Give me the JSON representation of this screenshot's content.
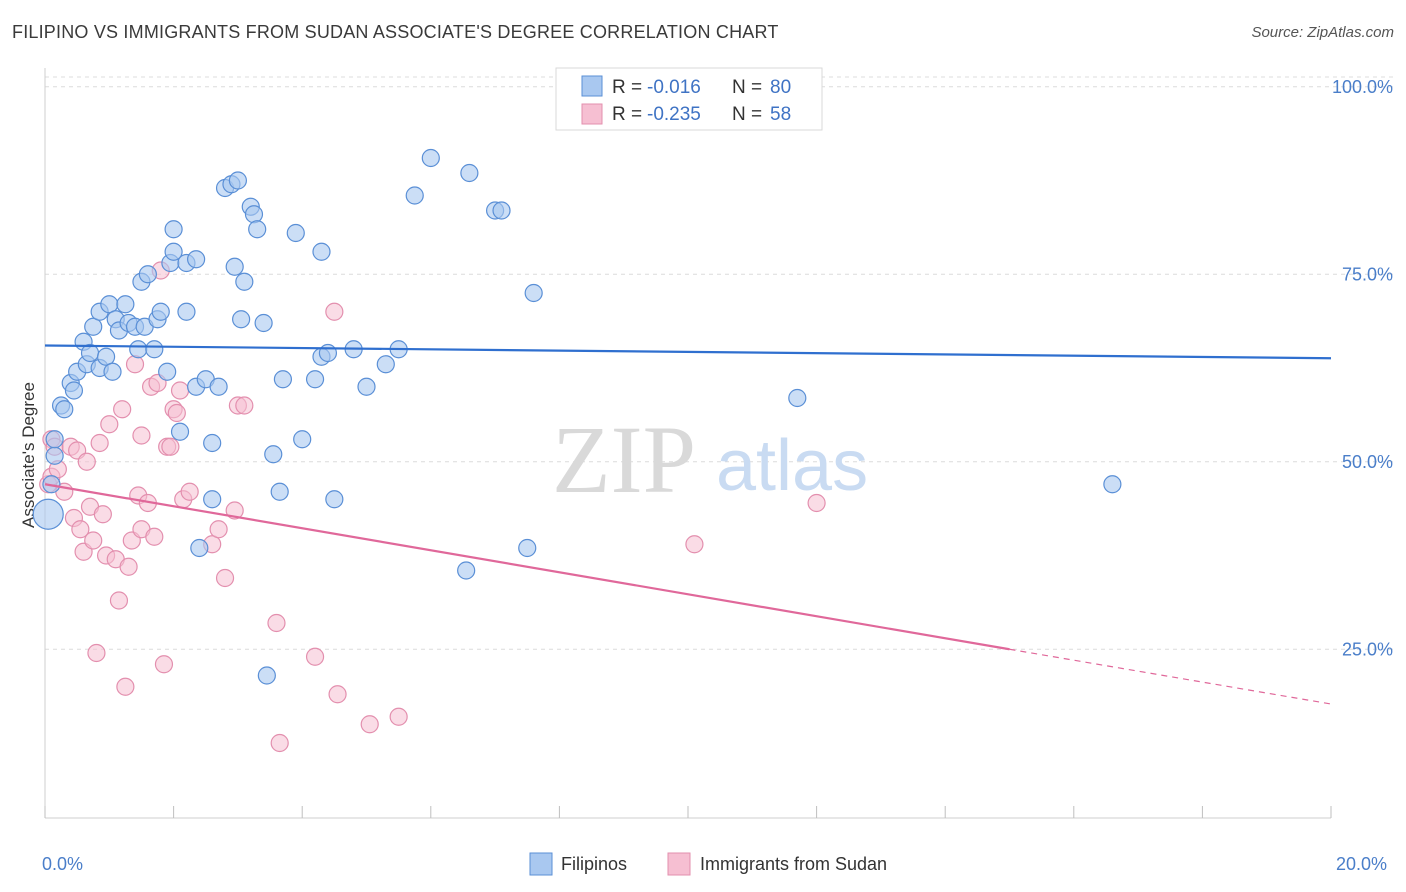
{
  "title": "FILIPINO VS IMMIGRANTS FROM SUDAN ASSOCIATE'S DEGREE CORRELATION CHART",
  "source": "Source: ZipAtlas.com",
  "colors": {
    "blue_fill": "#a9c8f0",
    "blue_stroke": "#5a8fd6",
    "blue_line": "#2f6fcf",
    "pink_fill": "#f6bfd2",
    "pink_stroke": "#e38fae",
    "pink_line": "#e0689a",
    "tick_text": "#4a7ec9",
    "grid": "#dcdcdc"
  },
  "legend": {
    "rows": [
      {
        "r_label": "R =",
        "r_value": "-0.016",
        "n_label": "N =",
        "n_value": "80"
      },
      {
        "r_label": "R =",
        "r_value": "-0.235",
        "n_label": "N =",
        "n_value": "58"
      }
    ]
  },
  "bottom_legend": [
    "Filipinos",
    "Immigrants from Sudan"
  ],
  "watermark": {
    "zip": "ZIP",
    "atlas": "atlas"
  },
  "chart_data": {
    "type": "scatter",
    "title": "FILIPINO VS IMMIGRANTS FROM SUDAN ASSOCIATE'S DEGREE CORRELATION CHART",
    "xlabel": "",
    "ylabel": "Associate's Degree",
    "xlim": [
      0,
      20
    ],
    "ylim": [
      2.5,
      102.5
    ],
    "x_tick_labels": [
      "0.0%",
      "20.0%"
    ],
    "y_ticks": [
      25,
      50,
      75,
      100
    ],
    "y_tick_labels": [
      "25.0%",
      "50.0%",
      "75.0%",
      "100.0%"
    ],
    "grid": true,
    "legend_position": "top-center",
    "series": [
      {
        "name": "Filipinos",
        "color": "#a9c8f0",
        "trend": {
          "x": [
            0,
            20
          ],
          "y": [
            65.5,
            63.8
          ]
        },
        "points": [
          {
            "x": 0.05,
            "y": 43.0
          },
          {
            "x": 0.1,
            "y": 47.0
          },
          {
            "x": 0.15,
            "y": 50.8
          },
          {
            "x": 0.15,
            "y": 53.0
          },
          {
            "x": 0.25,
            "y": 57.5
          },
          {
            "x": 0.3,
            "y": 57.0
          },
          {
            "x": 0.4,
            "y": 60.5
          },
          {
            "x": 0.45,
            "y": 59.5
          },
          {
            "x": 0.5,
            "y": 62.0
          },
          {
            "x": 0.6,
            "y": 66.0
          },
          {
            "x": 0.65,
            "y": 63.0
          },
          {
            "x": 0.7,
            "y": 64.5
          },
          {
            "x": 0.75,
            "y": 68.0
          },
          {
            "x": 0.85,
            "y": 62.5
          },
          {
            "x": 0.85,
            "y": 70.0
          },
          {
            "x": 0.95,
            "y": 64.0
          },
          {
            "x": 1.0,
            "y": 71.0
          },
          {
            "x": 1.05,
            "y": 62.0
          },
          {
            "x": 1.1,
            "y": 69.0
          },
          {
            "x": 1.15,
            "y": 67.5
          },
          {
            "x": 1.25,
            "y": 71.0
          },
          {
            "x": 1.3,
            "y": 68.5
          },
          {
            "x": 1.4,
            "y": 68.0
          },
          {
            "x": 1.45,
            "y": 65.0
          },
          {
            "x": 1.5,
            "y": 74.0
          },
          {
            "x": 1.55,
            "y": 68.0
          },
          {
            "x": 1.6,
            "y": 75.0
          },
          {
            "x": 1.7,
            "y": 65.0
          },
          {
            "x": 1.75,
            "y": 69.0
          },
          {
            "x": 1.8,
            "y": 70.0
          },
          {
            "x": 1.9,
            "y": 62.0
          },
          {
            "x": 1.95,
            "y": 76.5
          },
          {
            "x": 2.0,
            "y": 78.0
          },
          {
            "x": 2.0,
            "y": 81.0
          },
          {
            "x": 2.1,
            "y": 54.0
          },
          {
            "x": 2.2,
            "y": 70.0
          },
          {
            "x": 2.2,
            "y": 76.5
          },
          {
            "x": 2.35,
            "y": 77.0
          },
          {
            "x": 2.35,
            "y": 60.0
          },
          {
            "x": 2.4,
            "y": 38.5
          },
          {
            "x": 2.5,
            "y": 61.0
          },
          {
            "x": 2.6,
            "y": 52.5
          },
          {
            "x": 2.6,
            "y": 45.0
          },
          {
            "x": 2.7,
            "y": 60.0
          },
          {
            "x": 2.8,
            "y": 86.5
          },
          {
            "x": 2.9,
            "y": 87.0
          },
          {
            "x": 2.95,
            "y": 76.0
          },
          {
            "x": 3.0,
            "y": 87.5
          },
          {
            "x": 3.05,
            "y": 69.0
          },
          {
            "x": 3.1,
            "y": 74.0
          },
          {
            "x": 3.2,
            "y": 84.0
          },
          {
            "x": 3.25,
            "y": 83.0
          },
          {
            "x": 3.3,
            "y": 81.0
          },
          {
            "x": 3.4,
            "y": 68.5
          },
          {
            "x": 3.45,
            "y": 21.5
          },
          {
            "x": 3.55,
            "y": 51.0
          },
          {
            "x": 3.65,
            "y": 46.0
          },
          {
            "x": 3.7,
            "y": 61.0
          },
          {
            "x": 3.9,
            "y": 80.5
          },
          {
            "x": 4.0,
            "y": 53.0
          },
          {
            "x": 4.2,
            "y": 61.0
          },
          {
            "x": 4.3,
            "y": 78.0
          },
          {
            "x": 4.3,
            "y": 64.0
          },
          {
            "x": 4.4,
            "y": 64.5
          },
          {
            "x": 4.5,
            "y": 45.0
          },
          {
            "x": 4.8,
            "y": 65.0
          },
          {
            "x": 5.0,
            "y": 60.0
          },
          {
            "x": 5.3,
            "y": 63.0
          },
          {
            "x": 5.5,
            "y": 65.0
          },
          {
            "x": 5.75,
            "y": 85.5
          },
          {
            "x": 6.0,
            "y": 90.5
          },
          {
            "x": 6.55,
            "y": 35.5
          },
          {
            "x": 6.6,
            "y": 88.5
          },
          {
            "x": 7.0,
            "y": 83.5
          },
          {
            "x": 7.1,
            "y": 83.5
          },
          {
            "x": 7.5,
            "y": 38.5
          },
          {
            "x": 7.6,
            "y": 72.5
          },
          {
            "x": 11.7,
            "y": 58.5
          },
          {
            "x": 16.6,
            "y": 47.0
          }
        ]
      },
      {
        "name": "Immigrants from Sudan",
        "color": "#f6bfd2",
        "trend": {
          "x": [
            0,
            15.0
          ],
          "y": [
            47.0,
            25.0
          ],
          "dashed_extension": {
            "x": [
              15.0,
              20
            ],
            "y": [
              25.0,
              17.7
            ]
          }
        },
        "points": [
          {
            "x": 0.05,
            "y": 47.0
          },
          {
            "x": 0.1,
            "y": 48.0
          },
          {
            "x": 0.1,
            "y": 53.0
          },
          {
            "x": 0.15,
            "y": 52.0
          },
          {
            "x": 0.2,
            "y": 49.0
          },
          {
            "x": 0.3,
            "y": 46.0
          },
          {
            "x": 0.4,
            "y": 52.0
          },
          {
            "x": 0.45,
            "y": 42.5
          },
          {
            "x": 0.5,
            "y": 51.5
          },
          {
            "x": 0.55,
            "y": 41.0
          },
          {
            "x": 0.6,
            "y": 38.0
          },
          {
            "x": 0.65,
            "y": 50.0
          },
          {
            "x": 0.7,
            "y": 44.0
          },
          {
            "x": 0.75,
            "y": 39.5
          },
          {
            "x": 0.8,
            "y": 24.5
          },
          {
            "x": 0.85,
            "y": 52.5
          },
          {
            "x": 0.9,
            "y": 43.0
          },
          {
            "x": 0.95,
            "y": 37.5
          },
          {
            "x": 1.0,
            "y": 55.0
          },
          {
            "x": 1.1,
            "y": 37.0
          },
          {
            "x": 1.15,
            "y": 31.5
          },
          {
            "x": 1.2,
            "y": 57.0
          },
          {
            "x": 1.25,
            "y": 20.0
          },
          {
            "x": 1.3,
            "y": 36.0
          },
          {
            "x": 1.35,
            "y": 39.5
          },
          {
            "x": 1.4,
            "y": 63.0
          },
          {
            "x": 1.45,
            "y": 45.5
          },
          {
            "x": 1.5,
            "y": 41.0
          },
          {
            "x": 1.5,
            "y": 53.5
          },
          {
            "x": 1.6,
            "y": 44.5
          },
          {
            "x": 1.65,
            "y": 60.0
          },
          {
            "x": 1.7,
            "y": 40.0
          },
          {
            "x": 1.75,
            "y": 60.5
          },
          {
            "x": 1.8,
            "y": 75.5
          },
          {
            "x": 1.85,
            "y": 23.0
          },
          {
            "x": 1.9,
            "y": 52.0
          },
          {
            "x": 1.95,
            "y": 52.0
          },
          {
            "x": 2.0,
            "y": 57.0
          },
          {
            "x": 2.05,
            "y": 56.5
          },
          {
            "x": 2.1,
            "y": 59.5
          },
          {
            "x": 2.15,
            "y": 45.0
          },
          {
            "x": 2.25,
            "y": 46.0
          },
          {
            "x": 2.6,
            "y": 39.0
          },
          {
            "x": 2.7,
            "y": 41.0
          },
          {
            "x": 2.8,
            "y": 34.5
          },
          {
            "x": 2.95,
            "y": 43.5
          },
          {
            "x": 3.0,
            "y": 57.5
          },
          {
            "x": 3.1,
            "y": 57.5
          },
          {
            "x": 3.6,
            "y": 28.5
          },
          {
            "x": 3.65,
            "y": 12.5
          },
          {
            "x": 4.2,
            "y": 24.0
          },
          {
            "x": 4.5,
            "y": 70.0
          },
          {
            "x": 4.55,
            "y": 19.0
          },
          {
            "x": 5.05,
            "y": 15.0
          },
          {
            "x": 5.5,
            "y": 16.0
          },
          {
            "x": 10.1,
            "y": 39.0
          },
          {
            "x": 12.0,
            "y": 44.5
          }
        ]
      }
    ]
  }
}
